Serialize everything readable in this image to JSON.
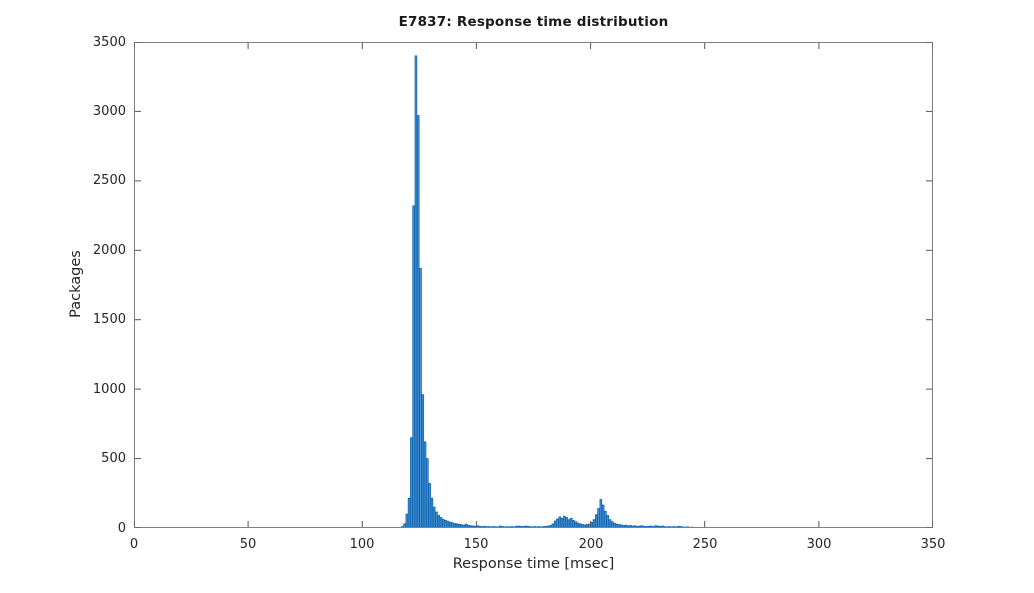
{
  "window": {
    "background_color": "#ffffff"
  },
  "chart_data": {
    "type": "bar",
    "subtype": "histogram",
    "title": "E7837: Response time distribution",
    "xlabel": "Response time [msec]",
    "ylabel": "Packages",
    "xlim": [
      0,
      350
    ],
    "ylim": [
      0,
      3500
    ],
    "xticks": [
      0,
      50,
      100,
      150,
      200,
      250,
      300,
      350
    ],
    "yticks": [
      0,
      500,
      1000,
      1500,
      2000,
      2500,
      3000,
      3500
    ],
    "grid": false,
    "legend": false,
    "box": true,
    "tick_direction": "in",
    "bin_width_msec": 1,
    "bins_start_msec": 117,
    "counts": [
      10,
      30,
      100,
      215,
      650,
      2320,
      3400,
      2970,
      1870,
      960,
      620,
      500,
      320,
      215,
      150,
      115,
      90,
      75,
      62,
      55,
      48,
      42,
      38,
      32,
      30,
      26,
      24,
      20,
      28,
      20,
      16,
      15,
      12,
      16,
      12,
      10,
      12,
      9,
      10,
      8,
      10,
      9,
      8,
      14,
      10,
      8,
      9,
      8,
      10,
      8,
      12,
      14,
      12,
      10,
      14,
      12,
      10,
      8,
      10,
      8,
      10,
      8,
      10,
      12,
      14,
      18,
      30,
      50,
      65,
      80,
      70,
      85,
      75,
      60,
      70,
      55,
      45,
      35,
      30,
      25,
      22,
      25,
      28,
      40,
      60,
      95,
      140,
      205,
      165,
      120,
      90,
      60,
      45,
      35,
      28,
      25,
      22,
      18,
      20,
      16,
      18,
      14,
      16,
      12,
      14,
      16,
      12,
      10,
      12,
      14,
      10,
      16,
      14,
      12,
      14,
      10,
      8,
      10,
      8,
      10,
      8,
      12,
      10,
      8,
      6,
      8,
      5,
      6,
      4,
      5,
      4,
      5,
      3,
      3
    ],
    "sparse_bins": [
      {
        "msec": 254,
        "count": 4
      },
      {
        "msec": 256,
        "count": 3
      },
      {
        "msec": 258,
        "count": 3
      },
      {
        "msec": 262,
        "count": 3
      },
      {
        "msec": 265,
        "count": 2
      },
      {
        "msec": 287,
        "count": 3
      },
      {
        "msec": 289,
        "count": 2
      },
      {
        "msec": 295,
        "count": 2
      }
    ],
    "colors": {
      "bar_face": "#4a96d8",
      "bar_edge": "#0f63ae",
      "axis_line": "#808080",
      "tick_mark": "#555555",
      "text": "#262626",
      "title_text": "#1a1a1a",
      "background": "#ffffff"
    }
  }
}
